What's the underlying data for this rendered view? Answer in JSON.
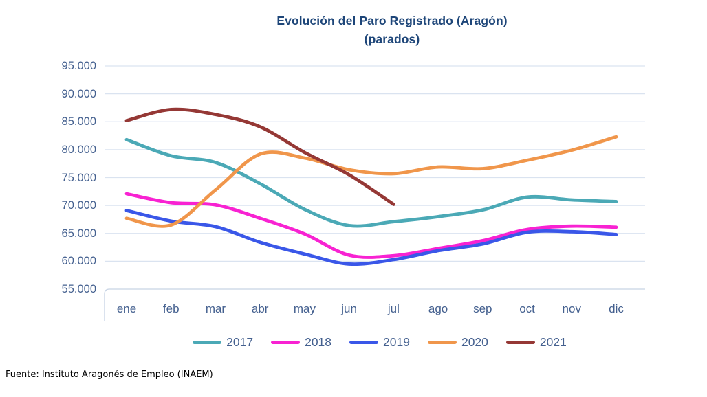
{
  "title": {
    "line1": "Evolución del Paro Registrado (Aragón)",
    "line2": "(parados)"
  },
  "footer": "Fuente: Instituto Aragonés de Empleo (INAEM)",
  "chart_data": {
    "type": "line",
    "title": "Evolución del Paro Registrado (Aragón) (parados)",
    "categories": [
      "ene",
      "feb",
      "mar",
      "abr",
      "may",
      "jun",
      "jul",
      "ago",
      "sep",
      "oct",
      "nov",
      "dic"
    ],
    "y_ticks": [
      {
        "label": "95.000",
        "value": 95000
      },
      {
        "label": "90.000",
        "value": 90000
      },
      {
        "label": "85.000",
        "value": 85000
      },
      {
        "label": "80.000",
        "value": 80000
      },
      {
        "label": "75.000",
        "value": 75000
      },
      {
        "label": "70.000",
        "value": 70000
      },
      {
        "label": "65.000",
        "value": 65000
      },
      {
        "label": "60.000",
        "value": 60000
      },
      {
        "label": "55.000",
        "value": 55000
      }
    ],
    "ylim": [
      55000,
      95000
    ],
    "grid": true,
    "smooth_lines": true,
    "legend_position": "bottom",
    "grid_color": "#DAE3F0",
    "axis_line_color": "#C7D3E4",
    "series": [
      {
        "name": "2017",
        "color": "#4BA9B6",
        "values": [
          81800,
          78900,
          77700,
          73900,
          69300,
          66400,
          67100,
          68000,
          69200,
          71500,
          71000,
          70700
        ]
      },
      {
        "name": "2018",
        "color": "#F822D2",
        "values": [
          72100,
          70500,
          70100,
          67700,
          64900,
          61100,
          61000,
          62300,
          63700,
          65700,
          66300,
          66100
        ]
      },
      {
        "name": "2019",
        "color": "#3A57E8",
        "values": [
          69100,
          67200,
          66200,
          63400,
          61300,
          59500,
          60300,
          61900,
          63100,
          65200,
          65300,
          64800
        ]
      },
      {
        "name": "2020",
        "color": "#F0964B",
        "values": [
          67700,
          66500,
          72800,
          79200,
          78500,
          76400,
          75700,
          76900,
          76600,
          78100,
          79900,
          82300
        ]
      },
      {
        "name": "2021",
        "color": "#953835",
        "values": [
          85200,
          87200,
          86300,
          84100,
          79500,
          75500,
          70200,
          null,
          null,
          null,
          null,
          null
        ]
      }
    ]
  }
}
